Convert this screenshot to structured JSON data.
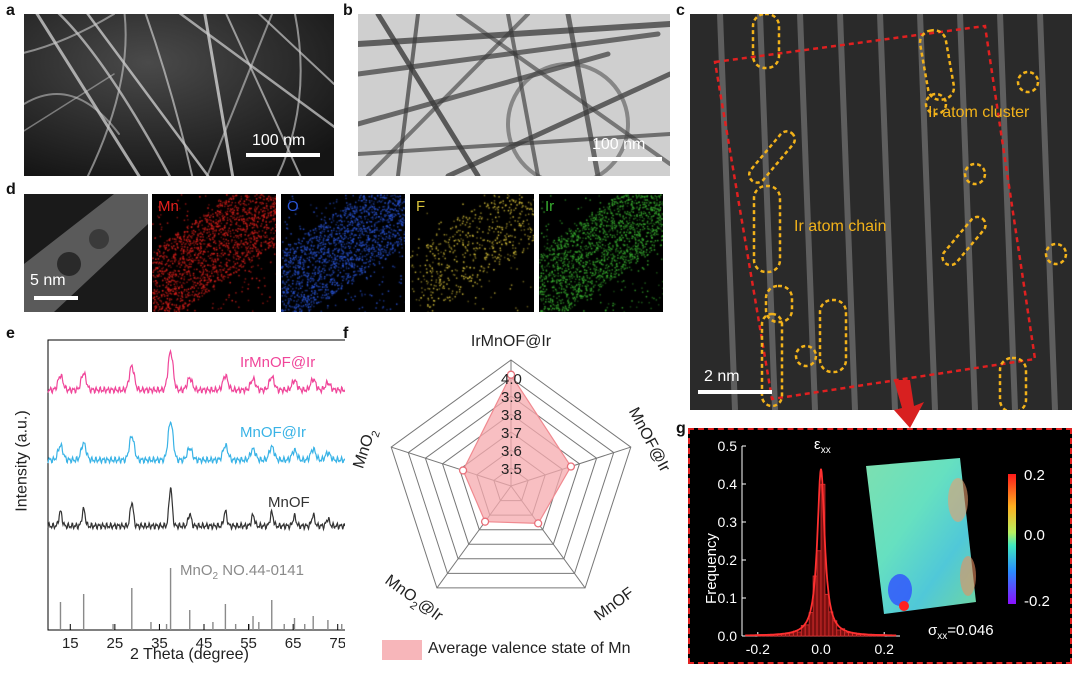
{
  "labels": {
    "a": "a",
    "b": "b",
    "c": "c",
    "d": "d",
    "e": "e",
    "f": "f",
    "g": "g"
  },
  "panel_a": {
    "scale_bar": "100 nm"
  },
  "panel_b": {
    "scale_bar": "100 nm"
  },
  "panel_c": {
    "scale_bar": "2 nm",
    "cluster_label": "Ir atom cluster",
    "chain_label": "Ir atom chain"
  },
  "panel_d": {
    "scale_bar": "5 nm",
    "maps": [
      {
        "element": "Mn",
        "color": "#e0201c"
      },
      {
        "element": "O",
        "color": "#2a55d8"
      },
      {
        "element": "F",
        "color": "#d8c23a"
      },
      {
        "element": "Ir",
        "color": "#38b030"
      }
    ]
  },
  "panel_e": {
    "ylabel": "Intensity (a.u.)",
    "xlabel": "2 Theta (degree)",
    "xticks": [
      "15",
      "25",
      "35",
      "45",
      "55",
      "65",
      "75"
    ],
    "series": [
      {
        "name": "IrMnOF@Ir",
        "color": "#f0469a"
      },
      {
        "name": "MnOF@Ir",
        "color": "#39b3e6"
      },
      {
        "name": "MnOF",
        "color": "#333333"
      }
    ],
    "reference": {
      "name": "MnO",
      "subscript": "2",
      "suffix": " NO.44-0141",
      "color": "#8a8a8a"
    }
  },
  "chart_data": {
    "type": "radar",
    "axes": [
      "IrMnOF@Ir",
      "MnOF@Ir",
      "MnOF",
      "MnO2@Ir",
      "MnO2"
    ],
    "axis_labels": [
      {
        "main": "IrMnOF@Ir",
        "sub": "",
        "tail": ""
      },
      {
        "main": "MnOF@Ir",
        "sub": "",
        "tail": ""
      },
      {
        "main": "MnOF",
        "sub": "",
        "tail": ""
      },
      {
        "main": "MnO",
        "sub": "2",
        "tail": "@Ir"
      },
      {
        "main": "MnO",
        "sub": "2",
        "tail": ""
      }
    ],
    "values": [
      3.93,
      3.7,
      3.62,
      3.61,
      3.64
    ],
    "range": [
      3.4,
      4.0
    ],
    "ticks": [
      "3.5",
      "3.6",
      "3.7",
      "3.8",
      "3.9",
      "4.0"
    ],
    "legend": "Average valence state of Mn",
    "fill_color": "#f6a9ae"
  },
  "panel_g": {
    "ylabel": "Frequency",
    "yticks": [
      "0.0",
      "0.1",
      "0.2",
      "0.3",
      "0.4",
      "0.5"
    ],
    "xticks": [
      "-0.2",
      "0.0",
      "0.2"
    ],
    "peak_label": "ε",
    "peak_sub": "xx",
    "sigma_label": "σ",
    "sigma_sub": "xx",
    "sigma_value": "=0.046",
    "colorbar_ticks": [
      "0.2",
      "0.0",
      "-0.2"
    ]
  }
}
